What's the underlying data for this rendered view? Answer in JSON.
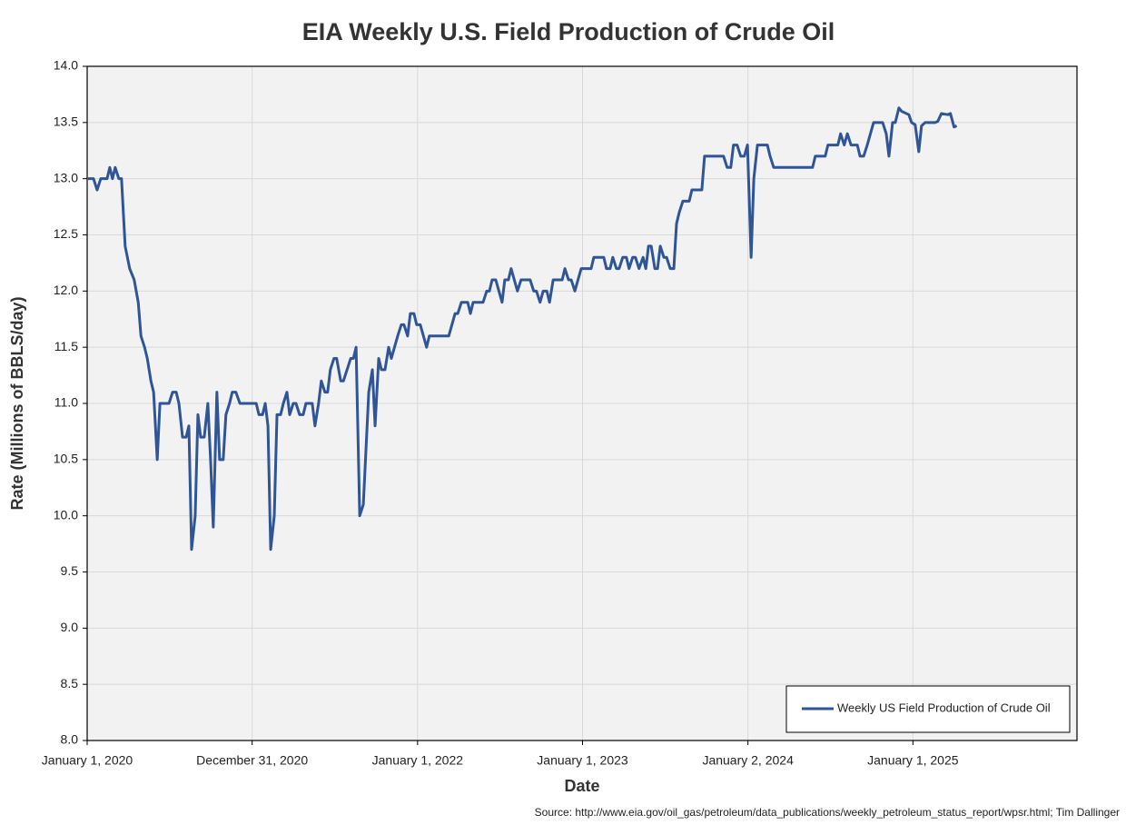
{
  "chart_data": {
    "type": "line",
    "title": "EIA Weekly U.S. Field Production of Crude Oil",
    "xlabel": "Date",
    "ylabel": "Rate (Millions of BBLS/day)",
    "source": "Source: http://www.eia.gov/oil_gas/petroleum/data_publications/weekly_petroleum_status_report/wpsr.html; Tim Dallinger",
    "xlim": [
      "2020-01-01",
      "2025-12-30"
    ],
    "xticks": [
      {
        "value": "2020-01-01",
        "label": "January 1, 2020"
      },
      {
        "value": "2020-12-31",
        "label": "December 31, 2020"
      },
      {
        "value": "2022-01-01",
        "label": "January 1, 2022"
      },
      {
        "value": "2023-01-01",
        "label": "January 1, 2023"
      },
      {
        "value": "2024-01-02",
        "label": "January 2, 2024"
      },
      {
        "value": "2025-01-01",
        "label": "January 1, 2025"
      }
    ],
    "ylim": [
      8,
      14
    ],
    "yticks": [
      {
        "value": 8,
        "label": "8.0"
      },
      8.5,
      {
        "value": 9,
        "label": "9.0"
      },
      9.5,
      {
        "value": 10,
        "label": "10.0"
      },
      10.5,
      {
        "value": 11,
        "label": "11.0"
      },
      11.5,
      {
        "value": 12,
        "label": "12.0"
      },
      12.5,
      {
        "value": 13,
        "label": "13.0"
      },
      13.5,
      {
        "value": 14,
        "label": "14.0"
      }
    ],
    "grid": true,
    "legend": "lower right",
    "x": [
      "2020-01-03",
      "2020-01-15",
      "2020-01-23",
      "2020-01-31",
      "2020-02-14",
      "2020-02-20",
      "2020-02-26",
      "2020-03-03",
      "2020-03-11",
      "2020-03-17",
      "2020-03-25",
      "2020-04-04",
      "2020-04-14",
      "2020-04-23",
      "2020-04-29",
      "2020-05-07",
      "2020-05-13",
      "2020-05-21",
      "2020-05-27",
      "2020-06-04",
      "2020-06-10",
      "2020-06-30",
      "2020-07-08",
      "2020-07-16",
      "2020-07-22",
      "2020-07-30",
      "2020-08-07",
      "2020-08-13",
      "2020-08-19",
      "2020-08-27",
      "2020-09-02",
      "2020-09-08",
      "2020-09-16",
      "2020-09-24",
      "2020-09-30",
      "2020-10-06",
      "2020-10-14",
      "2020-10-20",
      "2020-10-28",
      "2020-11-03",
      "2020-11-11",
      "2020-11-17",
      "2020-11-25",
      "2020-12-04",
      "2021-01-09",
      "2021-01-15",
      "2021-01-23",
      "2021-01-29",
      "2021-02-04",
      "2021-02-10",
      "2021-02-18",
      "2021-02-24",
      "2021-03-04",
      "2021-03-10",
      "2021-03-18",
      "2021-03-24",
      "2021-04-01",
      "2021-04-07",
      "2021-04-15",
      "2021-04-23",
      "2021-04-29",
      "2021-05-13",
      "2021-05-19",
      "2021-05-27",
      "2021-06-02",
      "2021-06-10",
      "2021-06-16",
      "2021-06-22",
      "2021-06-30",
      "2021-07-06",
      "2021-07-15",
      "2021-07-21",
      "2021-08-06",
      "2021-08-12",
      "2021-08-18",
      "2021-08-26",
      "2021-09-03",
      "2021-09-15",
      "2021-09-23",
      "2021-09-29",
      "2021-10-07",
      "2021-10-13",
      "2021-10-21",
      "2021-10-29",
      "2021-11-04",
      "2021-11-18",
      "2021-11-26",
      "2021-12-02",
      "2021-12-10",
      "2021-12-16",
      "2021-12-24",
      "2021-12-30",
      "2022-01-07",
      "2022-01-21",
      "2022-01-27",
      "2022-03-11",
      "2022-03-25",
      "2022-03-31",
      "2022-04-08",
      "2022-04-22",
      "2022-04-28",
      "2022-05-04",
      "2022-05-26",
      "2022-06-03",
      "2022-06-09",
      "2022-06-15",
      "2022-06-23",
      "2022-07-07",
      "2022-07-13",
      "2022-07-21",
      "2022-07-27",
      "2022-08-10",
      "2022-08-18",
      "2022-09-07",
      "2022-09-15",
      "2022-09-21",
      "2022-09-29",
      "2022-10-06",
      "2022-10-14",
      "2022-10-20",
      "2022-10-28",
      "2022-11-17",
      "2022-11-23",
      "2022-12-01",
      "2022-12-07",
      "2022-12-15",
      "2022-12-29",
      "2023-01-20",
      "2023-01-26",
      "2023-02-17",
      "2023-02-23",
      "2023-03-03",
      "2023-03-09",
      "2023-03-17",
      "2023-03-23",
      "2023-03-31",
      "2023-04-08",
      "2023-04-14",
      "2023-04-22",
      "2023-04-28",
      "2023-05-06",
      "2023-05-15",
      "2023-05-21",
      "2023-05-27",
      "2023-06-02",
      "2023-06-10",
      "2023-06-16",
      "2023-06-22",
      "2023-06-30",
      "2023-07-06",
      "2023-07-14",
      "2023-07-22",
      "2023-07-28",
      "2023-08-03",
      "2023-08-11",
      "2023-08-25",
      "2023-08-31",
      "2023-09-22",
      "2023-09-28",
      "2023-11-09",
      "2023-11-17",
      "2023-11-25",
      "2023-12-01",
      "2023-12-09",
      "2023-12-17",
      "2023-12-25",
      "2024-01-01",
      "2024-01-09",
      "2024-01-15",
      "2024-01-23",
      "2024-02-14",
      "2024-02-20",
      "2024-02-28",
      "2024-05-24",
      "2024-05-30",
      "2024-06-21",
      "2024-06-27",
      "2024-07-19",
      "2024-07-25",
      "2024-08-02",
      "2024-08-09",
      "2024-08-17",
      "2024-08-31",
      "2024-09-06",
      "2024-09-14",
      "2024-09-22",
      "2024-10-06",
      "2024-10-26",
      "2024-11-03",
      "2024-11-09",
      "2024-11-17",
      "2024-11-23",
      "2024-12-01",
      "2024-12-07",
      "2024-12-23",
      "2024-12-29",
      "2025-01-06",
      "2025-01-14",
      "2025-01-20",
      "2025-01-28",
      "2025-02-19",
      "2025-02-25",
      "2025-03-05",
      "2025-03-19",
      "2025-03-25",
      "2025-04-02",
      "2025-04-08"
    ],
    "series": [
      {
        "name": "Weekly US Field Production of Crude Oil",
        "color": "#2f5597",
        "values": [
          13.0,
          13.0,
          12.9,
          13.0,
          13.0,
          13.1,
          13.0,
          13.1,
          13.0,
          13.0,
          12.4,
          12.2,
          12.1,
          11.9,
          11.6,
          11.5,
          11.4,
          11.2,
          11.1,
          10.5,
          11.0,
          11.0,
          11.1,
          11.1,
          11.0,
          10.7,
          10.7,
          10.8,
          9.7,
          10.0,
          10.9,
          10.7,
          10.7,
          11.0,
          10.5,
          9.9,
          11.1,
          10.5,
          10.5,
          10.9,
          11.0,
          11.1,
          11.1,
          11.0,
          11.0,
          10.9,
          10.9,
          11.0,
          10.8,
          9.7,
          10.0,
          10.9,
          10.9,
          11.0,
          11.1,
          10.9,
          11.0,
          11.0,
          10.9,
          10.9,
          11.0,
          11.0,
          10.8,
          11.0,
          11.2,
          11.1,
          11.1,
          11.3,
          11.4,
          11.4,
          11.2,
          11.2,
          11.4,
          11.4,
          11.5,
          10.0,
          10.1,
          11.1,
          11.3,
          10.8,
          11.4,
          11.3,
          11.3,
          11.5,
          11.4,
          11.6,
          11.7,
          11.7,
          11.6,
          11.8,
          11.8,
          11.7,
          11.7,
          11.5,
          11.6,
          11.6,
          11.8,
          11.8,
          11.9,
          11.9,
          11.8,
          11.9,
          11.9,
          12.0,
          12.0,
          12.1,
          12.1,
          11.9,
          12.1,
          12.1,
          12.2,
          12.0,
          12.1,
          12.1,
          12.0,
          12.0,
          11.9,
          12.0,
          12.0,
          11.9,
          12.1,
          12.1,
          12.2,
          12.1,
          12.1,
          12.0,
          12.2,
          12.2,
          12.3,
          12.3,
          12.2,
          12.2,
          12.3,
          12.2,
          12.2,
          12.3,
          12.3,
          12.2,
          12.3,
          12.3,
          12.2,
          12.3,
          12.2,
          12.4,
          12.4,
          12.2,
          12.2,
          12.4,
          12.3,
          12.3,
          12.2,
          12.2,
          12.6,
          12.7,
          12.8,
          12.8,
          12.9,
          12.9,
          13.2,
          13.2,
          13.1,
          13.1,
          13.3,
          13.3,
          13.2,
          13.2,
          13.3,
          12.3,
          13.0,
          13.3,
          13.3,
          13.2,
          13.1,
          13.1,
          13.2,
          13.2,
          13.3,
          13.3,
          13.4,
          13.3,
          13.4,
          13.3,
          13.3,
          13.2,
          13.2,
          13.3,
          13.5,
          13.5,
          13.4,
          13.2,
          13.5,
          13.5,
          13.63,
          13.6,
          13.57,
          13.5,
          13.48,
          13.24,
          13.47,
          13.5,
          13.5,
          13.51,
          13.58,
          13.57,
          13.58,
          13.46,
          13.47
        ]
      }
    ]
  }
}
